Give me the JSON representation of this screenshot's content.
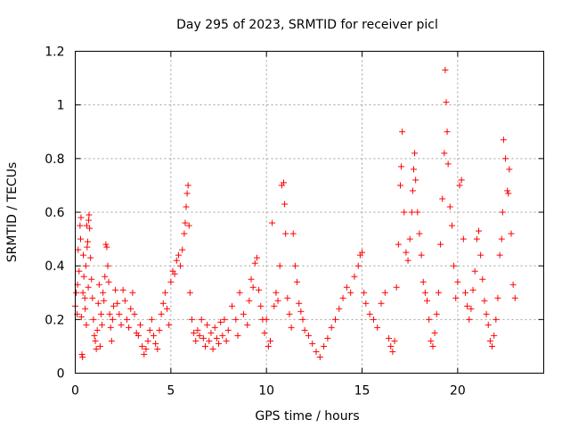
{
  "chart_data": {
    "type": "scatter",
    "title": "Day 295 of 2023, SRMTID for receiver picl",
    "xlabel": "GPS time / hours",
    "ylabel": "SRMTID / TECUs",
    "xlim": [
      0,
      24.5
    ],
    "ylim": [
      0,
      1.2
    ],
    "xticks": [
      0,
      5,
      10,
      15,
      20
    ],
    "xtick_labels": [
      "0",
      "5",
      "10",
      "15",
      "20"
    ],
    "yticks": [
      0,
      0.2,
      0.4,
      0.6,
      0.8,
      1.0,
      1.2
    ],
    "ytick_labels": [
      "0",
      "0.2",
      "0.4",
      "0.6",
      "0.8",
      "1",
      "1.2"
    ],
    "grid": true,
    "marker": "+",
    "color": "#ff0000",
    "series": [
      {
        "name": "SRMTID",
        "points": [
          [
            0.0,
            0.25
          ],
          [
            0.05,
            0.3
          ],
          [
            0.1,
            0.22
          ],
          [
            0.12,
            0.33
          ],
          [
            0.15,
            0.46
          ],
          [
            0.2,
            0.38
          ],
          [
            0.25,
            0.55
          ],
          [
            0.28,
            0.5
          ],
          [
            0.3,
            0.58
          ],
          [
            0.32,
            0.21
          ],
          [
            0.35,
            0.07
          ],
          [
            0.38,
            0.06
          ],
          [
            0.4,
            0.3
          ],
          [
            0.42,
            0.44
          ],
          [
            0.45,
            0.36
          ],
          [
            0.5,
            0.28
          ],
          [
            0.52,
            0.24
          ],
          [
            0.55,
            0.4
          ],
          [
            0.58,
            0.18
          ],
          [
            0.6,
            0.55
          ],
          [
            0.62,
            0.47
          ],
          [
            0.65,
            0.49
          ],
          [
            0.68,
            0.32
          ],
          [
            0.7,
            0.57
          ],
          [
            0.72,
            0.59
          ],
          [
            0.75,
            0.54
          ],
          [
            0.8,
            0.43
          ],
          [
            0.85,
            0.35
          ],
          [
            0.9,
            0.28
          ],
          [
            0.95,
            0.2
          ],
          [
            1.0,
            0.14
          ],
          [
            1.05,
            0.12
          ],
          [
            1.1,
            0.09
          ],
          [
            1.15,
            0.16
          ],
          [
            1.2,
            0.26
          ],
          [
            1.25,
            0.33
          ],
          [
            1.3,
            0.1
          ],
          [
            1.35,
            0.22
          ],
          [
            1.4,
            0.18
          ],
          [
            1.45,
            0.3
          ],
          [
            1.5,
            0.27
          ],
          [
            1.55,
            0.36
          ],
          [
            1.6,
            0.48
          ],
          [
            1.65,
            0.47
          ],
          [
            1.7,
            0.4
          ],
          [
            1.75,
            0.34
          ],
          [
            1.8,
            0.22
          ],
          [
            1.85,
            0.17
          ],
          [
            1.9,
            0.12
          ],
          [
            1.95,
            0.2
          ],
          [
            2.0,
            0.25
          ],
          [
            2.1,
            0.31
          ],
          [
            2.2,
            0.26
          ],
          [
            2.3,
            0.22
          ],
          [
            2.4,
            0.18
          ],
          [
            2.5,
            0.31
          ],
          [
            2.6,
            0.27
          ],
          [
            2.7,
            0.2
          ],
          [
            2.8,
            0.17
          ],
          [
            2.9,
            0.24
          ],
          [
            3.0,
            0.3
          ],
          [
            3.1,
            0.22
          ],
          [
            3.2,
            0.15
          ],
          [
            3.3,
            0.14
          ],
          [
            3.4,
            0.18
          ],
          [
            3.5,
            0.1
          ],
          [
            3.6,
            0.07
          ],
          [
            3.7,
            0.09
          ],
          [
            3.8,
            0.12
          ],
          [
            3.9,
            0.16
          ],
          [
            4.0,
            0.2
          ],
          [
            4.1,
            0.14
          ],
          [
            4.2,
            0.11
          ],
          [
            4.3,
            0.09
          ],
          [
            4.4,
            0.16
          ],
          [
            4.5,
            0.22
          ],
          [
            4.6,
            0.26
          ],
          [
            4.7,
            0.3
          ],
          [
            4.8,
            0.24
          ],
          [
            4.9,
            0.18
          ],
          [
            5.0,
            0.34
          ],
          [
            5.1,
            0.38
          ],
          [
            5.2,
            0.37
          ],
          [
            5.3,
            0.42
          ],
          [
            5.4,
            0.44
          ],
          [
            5.5,
            0.4
          ],
          [
            5.6,
            0.46
          ],
          [
            5.7,
            0.52
          ],
          [
            5.75,
            0.56
          ],
          [
            5.8,
            0.62
          ],
          [
            5.85,
            0.67
          ],
          [
            5.9,
            0.7
          ],
          [
            5.95,
            0.55
          ],
          [
            6.0,
            0.3
          ],
          [
            6.1,
            0.2
          ],
          [
            6.2,
            0.15
          ],
          [
            6.3,
            0.12
          ],
          [
            6.4,
            0.16
          ],
          [
            6.5,
            0.14
          ],
          [
            6.6,
            0.2
          ],
          [
            6.7,
            0.13
          ],
          [
            6.8,
            0.1
          ],
          [
            6.9,
            0.18
          ],
          [
            7.0,
            0.12
          ],
          [
            7.1,
            0.15
          ],
          [
            7.2,
            0.09
          ],
          [
            7.3,
            0.17
          ],
          [
            7.4,
            0.13
          ],
          [
            7.5,
            0.11
          ],
          [
            7.6,
            0.19
          ],
          [
            7.7,
            0.14
          ],
          [
            7.8,
            0.2
          ],
          [
            7.9,
            0.12
          ],
          [
            8.0,
            0.16
          ],
          [
            8.2,
            0.25
          ],
          [
            8.4,
            0.2
          ],
          [
            8.5,
            0.14
          ],
          [
            8.6,
            0.3
          ],
          [
            8.8,
            0.22
          ],
          [
            9.0,
            0.18
          ],
          [
            9.1,
            0.27
          ],
          [
            9.2,
            0.35
          ],
          [
            9.3,
            0.32
          ],
          [
            9.4,
            0.41
          ],
          [
            9.5,
            0.43
          ],
          [
            9.6,
            0.31
          ],
          [
            9.7,
            0.25
          ],
          [
            9.8,
            0.2
          ],
          [
            9.9,
            0.15
          ],
          [
            10.0,
            0.2
          ],
          [
            10.1,
            0.1
          ],
          [
            10.2,
            0.12
          ],
          [
            10.3,
            0.56
          ],
          [
            10.4,
            0.25
          ],
          [
            10.5,
            0.3
          ],
          [
            10.6,
            0.27
          ],
          [
            10.7,
            0.4
          ],
          [
            10.8,
            0.7
          ],
          [
            10.9,
            0.71
          ],
          [
            10.95,
            0.63
          ],
          [
            11.0,
            0.52
          ],
          [
            11.1,
            0.28
          ],
          [
            11.2,
            0.22
          ],
          [
            11.3,
            0.17
          ],
          [
            11.4,
            0.52
          ],
          [
            11.5,
            0.4
          ],
          [
            11.6,
            0.34
          ],
          [
            11.7,
            0.26
          ],
          [
            11.8,
            0.23
          ],
          [
            11.9,
            0.2
          ],
          [
            12.0,
            0.16
          ],
          [
            12.2,
            0.14
          ],
          [
            12.4,
            0.11
          ],
          [
            12.6,
            0.08
          ],
          [
            12.8,
            0.06
          ],
          [
            13.0,
            0.1
          ],
          [
            13.2,
            0.13
          ],
          [
            13.4,
            0.17
          ],
          [
            13.6,
            0.2
          ],
          [
            13.8,
            0.24
          ],
          [
            14.0,
            0.28
          ],
          [
            14.2,
            0.32
          ],
          [
            14.4,
            0.3
          ],
          [
            14.6,
            0.36
          ],
          [
            14.8,
            0.4
          ],
          [
            14.9,
            0.44
          ],
          [
            15.0,
            0.45
          ],
          [
            15.1,
            0.3
          ],
          [
            15.2,
            0.26
          ],
          [
            15.4,
            0.22
          ],
          [
            15.6,
            0.2
          ],
          [
            15.8,
            0.17
          ],
          [
            16.0,
            0.26
          ],
          [
            16.2,
            0.3
          ],
          [
            16.4,
            0.13
          ],
          [
            16.5,
            0.1
          ],
          [
            16.6,
            0.08
          ],
          [
            16.7,
            0.12
          ],
          [
            16.8,
            0.32
          ],
          [
            16.9,
            0.48
          ],
          [
            17.0,
            0.7
          ],
          [
            17.05,
            0.77
          ],
          [
            17.1,
            0.9
          ],
          [
            17.2,
            0.6
          ],
          [
            17.3,
            0.45
          ],
          [
            17.4,
            0.42
          ],
          [
            17.5,
            0.5
          ],
          [
            17.6,
            0.6
          ],
          [
            17.65,
            0.68
          ],
          [
            17.7,
            0.76
          ],
          [
            17.75,
            0.82
          ],
          [
            17.8,
            0.72
          ],
          [
            17.9,
            0.6
          ],
          [
            18.0,
            0.52
          ],
          [
            18.1,
            0.44
          ],
          [
            18.2,
            0.34
          ],
          [
            18.3,
            0.3
          ],
          [
            18.4,
            0.27
          ],
          [
            18.5,
            0.2
          ],
          [
            18.6,
            0.12
          ],
          [
            18.7,
            0.1
          ],
          [
            18.8,
            0.15
          ],
          [
            18.9,
            0.22
          ],
          [
            19.0,
            0.3
          ],
          [
            19.1,
            0.48
          ],
          [
            19.2,
            0.65
          ],
          [
            19.3,
            0.82
          ],
          [
            19.35,
            1.13
          ],
          [
            19.4,
            1.01
          ],
          [
            19.45,
            0.9
          ],
          [
            19.5,
            0.78
          ],
          [
            19.6,
            0.62
          ],
          [
            19.7,
            0.55
          ],
          [
            19.8,
            0.4
          ],
          [
            19.9,
            0.28
          ],
          [
            20.0,
            0.34
          ],
          [
            20.1,
            0.7
          ],
          [
            20.2,
            0.72
          ],
          [
            20.3,
            0.5
          ],
          [
            20.4,
            0.3
          ],
          [
            20.5,
            0.25
          ],
          [
            20.6,
            0.2
          ],
          [
            20.7,
            0.24
          ],
          [
            20.8,
            0.31
          ],
          [
            20.9,
            0.38
          ],
          [
            21.0,
            0.5
          ],
          [
            21.1,
            0.53
          ],
          [
            21.2,
            0.44
          ],
          [
            21.3,
            0.35
          ],
          [
            21.4,
            0.27
          ],
          [
            21.5,
            0.22
          ],
          [
            21.6,
            0.18
          ],
          [
            21.7,
            0.12
          ],
          [
            21.8,
            0.1
          ],
          [
            21.9,
            0.14
          ],
          [
            22.0,
            0.2
          ],
          [
            22.1,
            0.28
          ],
          [
            22.2,
            0.44
          ],
          [
            22.3,
            0.5
          ],
          [
            22.35,
            0.6
          ],
          [
            22.4,
            0.87
          ],
          [
            22.5,
            0.8
          ],
          [
            22.6,
            0.68
          ],
          [
            22.65,
            0.67
          ],
          [
            22.7,
            0.76
          ],
          [
            22.8,
            0.52
          ],
          [
            22.9,
            0.33
          ],
          [
            23.0,
            0.28
          ]
        ]
      }
    ]
  }
}
